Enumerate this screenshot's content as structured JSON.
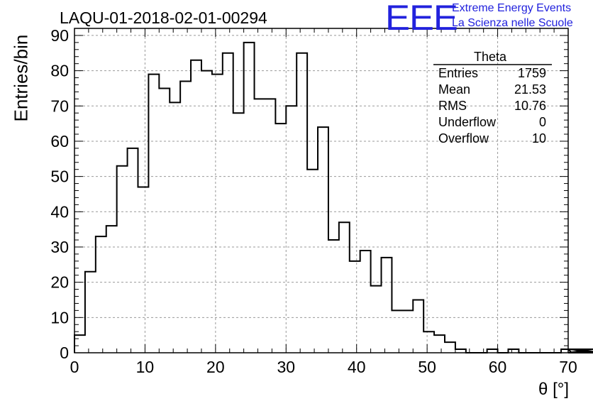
{
  "chart_data": {
    "type": "bar",
    "histogram": true,
    "title": "LAQU-01-2018-02-01-00294",
    "xlabel": "θ [°]",
    "ylabel": "Entries/bin",
    "xlim": [
      0,
      70
    ],
    "ylim": [
      0,
      92
    ],
    "x_ticks": [
      0,
      10,
      20,
      30,
      40,
      50,
      60,
      70
    ],
    "y_ticks": [
      0,
      10,
      20,
      30,
      40,
      50,
      60,
      70,
      80,
      90
    ],
    "grid": true,
    "bin_width": 1.5,
    "bin_edges_start": 0,
    "values": [
      5,
      23,
      33,
      36,
      53,
      58,
      47,
      79,
      75,
      71,
      77,
      83,
      80,
      79,
      85,
      68,
      88,
      72,
      72,
      65,
      70,
      85,
      52,
      64,
      32,
      37,
      26,
      29,
      19,
      27,
      12,
      12,
      15,
      6,
      5,
      3,
      1,
      0,
      0,
      1,
      0,
      1,
      0,
      0,
      0,
      0,
      1,
      0,
      0,
      1,
      0,
      0,
      0,
      1
    ],
    "stats_box": {
      "title": "Theta",
      "rows": [
        {
          "label": "Entries",
          "value": "1759"
        },
        {
          "label": "Mean",
          "value": "21.53"
        },
        {
          "label": "RMS",
          "value": "10.76"
        },
        {
          "label": "Underflow",
          "value": "0"
        },
        {
          "label": "Overflow",
          "value": "10"
        }
      ]
    }
  },
  "logo": {
    "mark": "EEE",
    "line1": "Extreme Energy Events",
    "line2": "La Scienza nelle Scuole",
    "color": "#2222dd"
  }
}
